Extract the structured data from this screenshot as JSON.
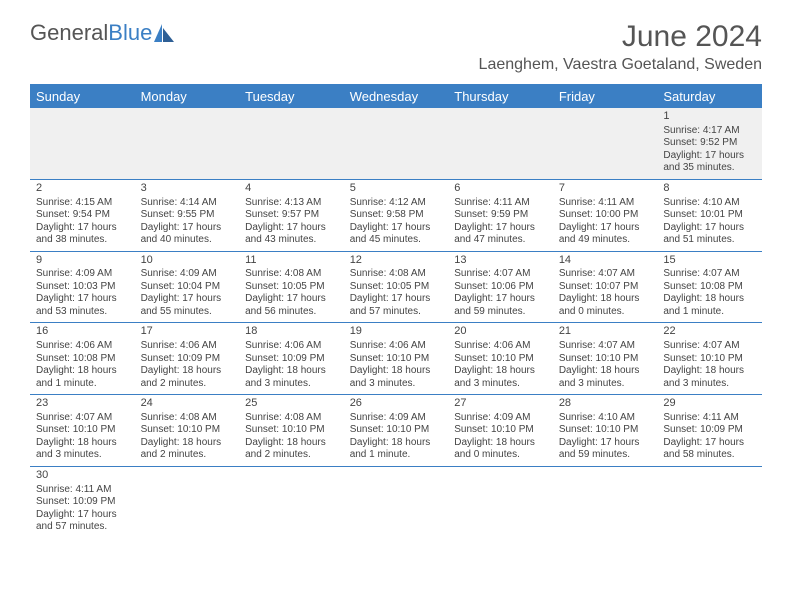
{
  "logo": {
    "text1": "General",
    "text2": "Blue"
  },
  "title": "June 2024",
  "location": "Laenghem, Vaestra Goetaland, Sweden",
  "headers": [
    "Sunday",
    "Monday",
    "Tuesday",
    "Wednesday",
    "Thursday",
    "Friday",
    "Saturday"
  ],
  "colors": {
    "header_bg": "#3b7fc4",
    "header_text": "#ffffff",
    "rule": "#3b7fc4",
    "text": "#444444",
    "empty_bg": "#f0f0f0"
  },
  "weeks": [
    [
      null,
      null,
      null,
      null,
      null,
      null,
      {
        "n": "1",
        "sr": "Sunrise: 4:17 AM",
        "ss": "Sunset: 9:52 PM",
        "dl": "Daylight: 17 hours and 35 minutes."
      }
    ],
    [
      {
        "n": "2",
        "sr": "Sunrise: 4:15 AM",
        "ss": "Sunset: 9:54 PM",
        "dl": "Daylight: 17 hours and 38 minutes."
      },
      {
        "n": "3",
        "sr": "Sunrise: 4:14 AM",
        "ss": "Sunset: 9:55 PM",
        "dl": "Daylight: 17 hours and 40 minutes."
      },
      {
        "n": "4",
        "sr": "Sunrise: 4:13 AM",
        "ss": "Sunset: 9:57 PM",
        "dl": "Daylight: 17 hours and 43 minutes."
      },
      {
        "n": "5",
        "sr": "Sunrise: 4:12 AM",
        "ss": "Sunset: 9:58 PM",
        "dl": "Daylight: 17 hours and 45 minutes."
      },
      {
        "n": "6",
        "sr": "Sunrise: 4:11 AM",
        "ss": "Sunset: 9:59 PM",
        "dl": "Daylight: 17 hours and 47 minutes."
      },
      {
        "n": "7",
        "sr": "Sunrise: 4:11 AM",
        "ss": "Sunset: 10:00 PM",
        "dl": "Daylight: 17 hours and 49 minutes."
      },
      {
        "n": "8",
        "sr": "Sunrise: 4:10 AM",
        "ss": "Sunset: 10:01 PM",
        "dl": "Daylight: 17 hours and 51 minutes."
      }
    ],
    [
      {
        "n": "9",
        "sr": "Sunrise: 4:09 AM",
        "ss": "Sunset: 10:03 PM",
        "dl": "Daylight: 17 hours and 53 minutes."
      },
      {
        "n": "10",
        "sr": "Sunrise: 4:09 AM",
        "ss": "Sunset: 10:04 PM",
        "dl": "Daylight: 17 hours and 55 minutes."
      },
      {
        "n": "11",
        "sr": "Sunrise: 4:08 AM",
        "ss": "Sunset: 10:05 PM",
        "dl": "Daylight: 17 hours and 56 minutes."
      },
      {
        "n": "12",
        "sr": "Sunrise: 4:08 AM",
        "ss": "Sunset: 10:05 PM",
        "dl": "Daylight: 17 hours and 57 minutes."
      },
      {
        "n": "13",
        "sr": "Sunrise: 4:07 AM",
        "ss": "Sunset: 10:06 PM",
        "dl": "Daylight: 17 hours and 59 minutes."
      },
      {
        "n": "14",
        "sr": "Sunrise: 4:07 AM",
        "ss": "Sunset: 10:07 PM",
        "dl": "Daylight: 18 hours and 0 minutes."
      },
      {
        "n": "15",
        "sr": "Sunrise: 4:07 AM",
        "ss": "Sunset: 10:08 PM",
        "dl": "Daylight: 18 hours and 1 minute."
      }
    ],
    [
      {
        "n": "16",
        "sr": "Sunrise: 4:06 AM",
        "ss": "Sunset: 10:08 PM",
        "dl": "Daylight: 18 hours and 1 minute."
      },
      {
        "n": "17",
        "sr": "Sunrise: 4:06 AM",
        "ss": "Sunset: 10:09 PM",
        "dl": "Daylight: 18 hours and 2 minutes."
      },
      {
        "n": "18",
        "sr": "Sunrise: 4:06 AM",
        "ss": "Sunset: 10:09 PM",
        "dl": "Daylight: 18 hours and 3 minutes."
      },
      {
        "n": "19",
        "sr": "Sunrise: 4:06 AM",
        "ss": "Sunset: 10:10 PM",
        "dl": "Daylight: 18 hours and 3 minutes."
      },
      {
        "n": "20",
        "sr": "Sunrise: 4:06 AM",
        "ss": "Sunset: 10:10 PM",
        "dl": "Daylight: 18 hours and 3 minutes."
      },
      {
        "n": "21",
        "sr": "Sunrise: 4:07 AM",
        "ss": "Sunset: 10:10 PM",
        "dl": "Daylight: 18 hours and 3 minutes."
      },
      {
        "n": "22",
        "sr": "Sunrise: 4:07 AM",
        "ss": "Sunset: 10:10 PM",
        "dl": "Daylight: 18 hours and 3 minutes."
      }
    ],
    [
      {
        "n": "23",
        "sr": "Sunrise: 4:07 AM",
        "ss": "Sunset: 10:10 PM",
        "dl": "Daylight: 18 hours and 3 minutes."
      },
      {
        "n": "24",
        "sr": "Sunrise: 4:08 AM",
        "ss": "Sunset: 10:10 PM",
        "dl": "Daylight: 18 hours and 2 minutes."
      },
      {
        "n": "25",
        "sr": "Sunrise: 4:08 AM",
        "ss": "Sunset: 10:10 PM",
        "dl": "Daylight: 18 hours and 2 minutes."
      },
      {
        "n": "26",
        "sr": "Sunrise: 4:09 AM",
        "ss": "Sunset: 10:10 PM",
        "dl": "Daylight: 18 hours and 1 minute."
      },
      {
        "n": "27",
        "sr": "Sunrise: 4:09 AM",
        "ss": "Sunset: 10:10 PM",
        "dl": "Daylight: 18 hours and 0 minutes."
      },
      {
        "n": "28",
        "sr": "Sunrise: 4:10 AM",
        "ss": "Sunset: 10:10 PM",
        "dl": "Daylight: 17 hours and 59 minutes."
      },
      {
        "n": "29",
        "sr": "Sunrise: 4:11 AM",
        "ss": "Sunset: 10:09 PM",
        "dl": "Daylight: 17 hours and 58 minutes."
      }
    ],
    [
      {
        "n": "30",
        "sr": "Sunrise: 4:11 AM",
        "ss": "Sunset: 10:09 PM",
        "dl": "Daylight: 17 hours and 57 minutes."
      },
      null,
      null,
      null,
      null,
      null,
      null
    ]
  ]
}
